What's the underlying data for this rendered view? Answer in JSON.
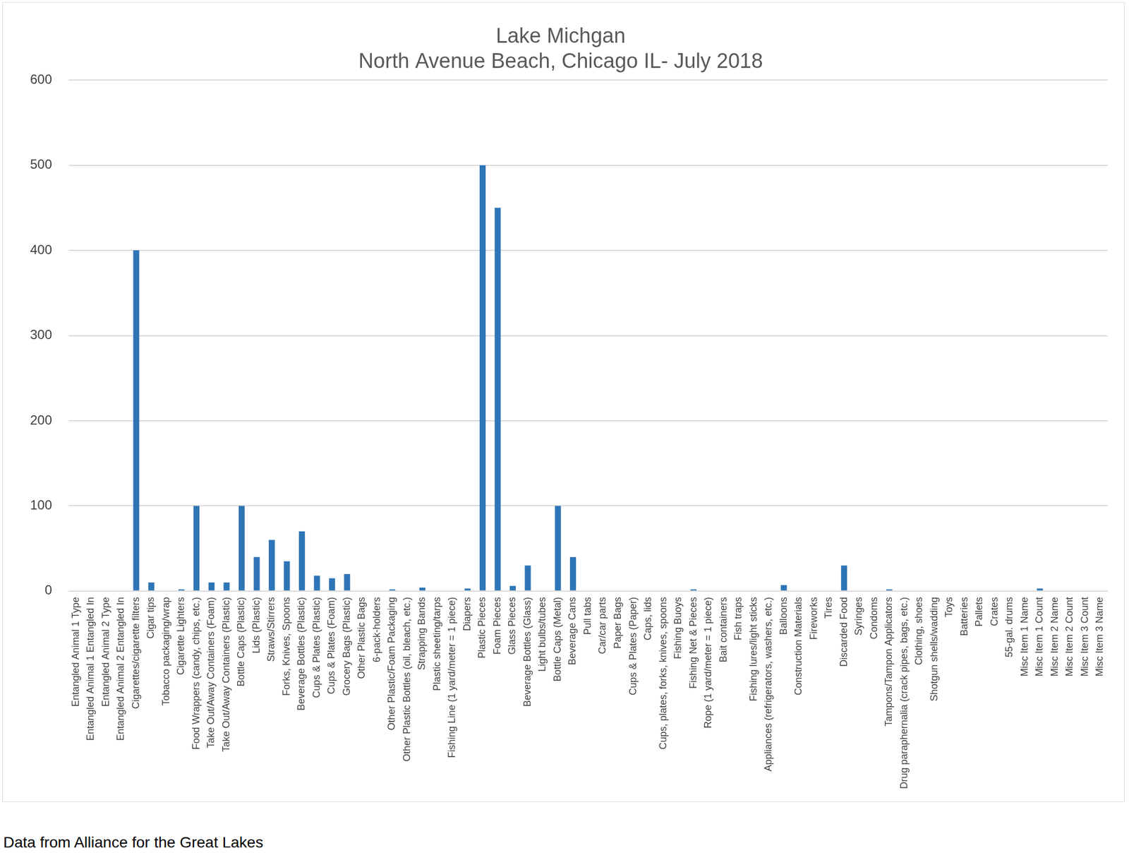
{
  "chart_data": {
    "type": "bar",
    "title": [
      "Lake Michgan",
      "North Avenue Beach, Chicago IL- July 2018"
    ],
    "source": "Data from Alliance for the Great Lakes",
    "categories": [
      "Entangled Animal 1 Type",
      "Entangled Animal 1 Entangled In",
      "Entangled Animal 2 Type",
      "Entangled Animal 2 Entangled In",
      "Cigarettes/cigarette filters",
      "Cigar tips",
      "Tobacco packaging/wrap",
      "Cigarette Lighters",
      "Food Wrappers (candy, chips, etc.)",
      "Take Out/Away Containers (Foam)",
      "Take Out/Away Containers (Plastic)",
      "Bottle Caps (Plastic)",
      "Lids (Plastic)",
      "Straws/Stirrers",
      "Forks, Knives, Spoons",
      "Beverage Bottles (Plastic)",
      "Cups & Plates (Plastic)",
      "Cups & Plates (Foam)",
      "Grocery Bags (Plastic)",
      "Other Plastic Bags",
      "6-pack-holders",
      "Other Plastic/Foam Packaging",
      "Other Plastic Bottles (oil, bleach, etc.)",
      "Strapping Bands",
      "Plastic sheeting/tarps",
      "Fishing Line (1 yard/meter = 1 piece)",
      "Diapers",
      "Plastic Pieces",
      "Foam Pieces",
      "Glass Pieces",
      "Beverage Bottles (Glass)",
      "Light bulbs/tubes",
      "Bottle Caps (Metal)",
      "Beverage Cans",
      "Pull tabs",
      "Car/car parts",
      "Paper Bags",
      "Cups & Plates (Paper)",
      "Caps, lids",
      "Cups, plates, forks, knives, spoons",
      "Fishing Buoys",
      "Fishing Net & Pieces",
      "Rope (1 yard/meter = 1 piece)",
      "Bait containers",
      "Fish traps",
      "Fishing lures/light sticks",
      "Appliances (refrigerators, washers, etc.)",
      "Balloons",
      "Construction Materials",
      "Fireworks",
      "Tires",
      "Discarded Food",
      "Syringes",
      "Condoms",
      "Tampons/Tampon Applicators",
      "Drug paraphernalia (crack pipes, bags, etc.)",
      "Clothing, shoes",
      "Shotgun shells/wadding",
      "Toys",
      "Batteries",
      "Pallets",
      "Crates",
      "55-gal. drums",
      "Misc Item 1 Name",
      "Misc Item 1 Count",
      "Misc Item 2 Name",
      "Misc Item 2 Count",
      "Misc Item 3 Count",
      "Misc Item 3 Name"
    ],
    "values": [
      0,
      0,
      0,
      0,
      400,
      10,
      0,
      2,
      100,
      10,
      10,
      100,
      40,
      60,
      35,
      70,
      18,
      15,
      20,
      0,
      0,
      2,
      0,
      4,
      0,
      0,
      3,
      500,
      450,
      6,
      30,
      0,
      100,
      40,
      0,
      0,
      0,
      0,
      0,
      0,
      0,
      2,
      0,
      0,
      0,
      0,
      0,
      7,
      0,
      0,
      0,
      30,
      0,
      0,
      2,
      0,
      0,
      0,
      0,
      0,
      0,
      0,
      0,
      0,
      3,
      0,
      0,
      0,
      0
    ],
    "color": "#2e75b6",
    "ylim": [
      0,
      600
    ],
    "yticks": [
      0,
      100,
      200,
      300,
      400,
      500,
      600
    ],
    "grid": true
  }
}
